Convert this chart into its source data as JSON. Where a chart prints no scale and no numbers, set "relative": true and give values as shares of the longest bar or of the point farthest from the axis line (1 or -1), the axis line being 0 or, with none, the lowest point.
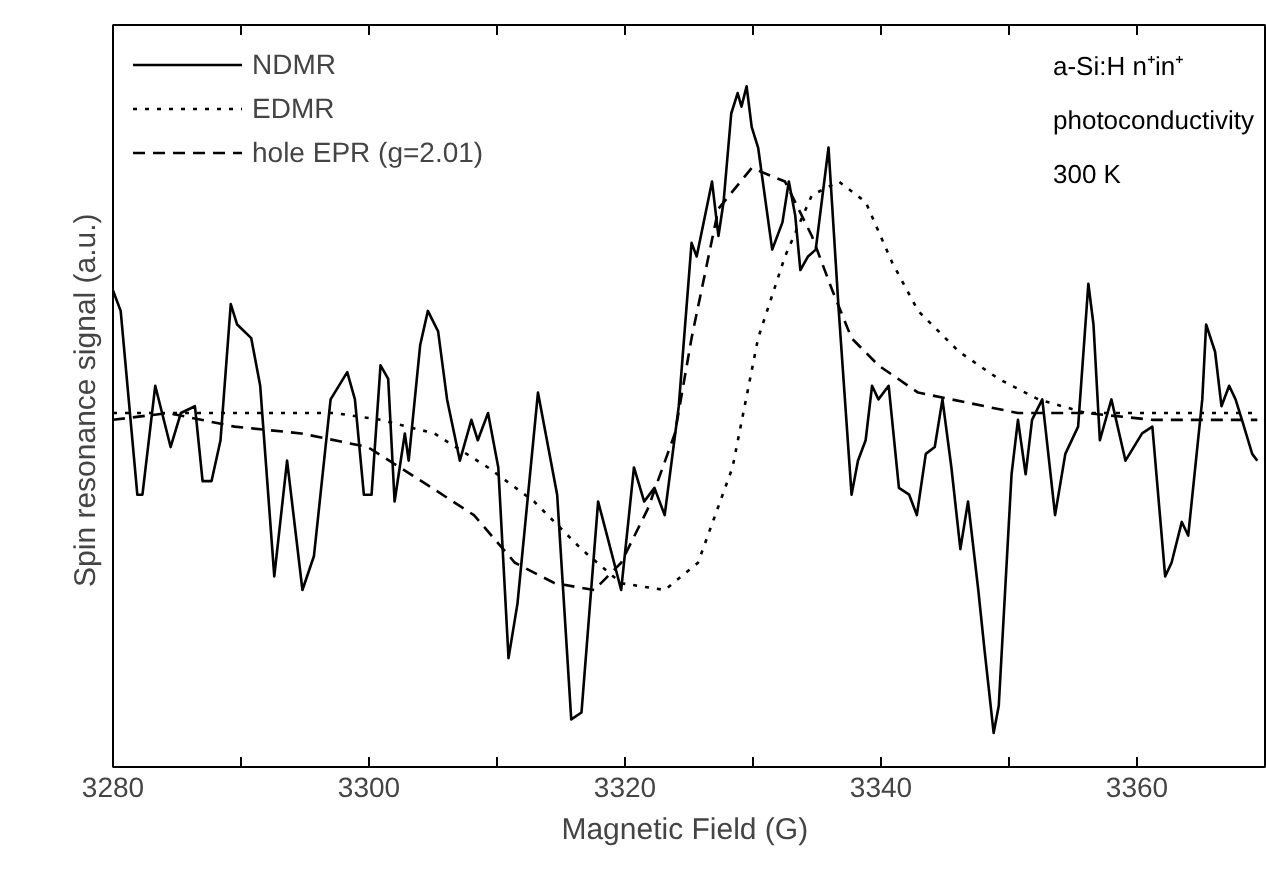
{
  "chart_data": {
    "type": "line",
    "relative": true,
    "xlabel": "Magnetic Field  (G)",
    "ylabel": "Spin resonance signal  (a.u.)",
    "xlim": [
      3280,
      3370
    ],
    "xticks": [
      3280,
      {
        "value": 3290,
        "label": null
      },
      3300,
      {
        "value": 3310,
        "label": null
      },
      3320,
      {
        "value": 3330,
        "label": null
      },
      3340,
      {
        "value": 3350,
        "label": null
      },
      3360
    ],
    "legend": "top left",
    "grid": false,
    "marker": "none",
    "annotations": [
      "a-Si:H n⁺in⁺",
      "photoconductivity",
      "300 K"
    ],
    "series": [
      {
        "name": "NDMR",
        "color": "#000000",
        "line_style": "solid",
        "x": [
          3280.0,
          3280.6,
          3281.9,
          3282.3,
          3283.3,
          3284.5,
          3285.3,
          3286.4,
          3287.0,
          3287.7,
          3288.4,
          3289.2,
          3289.7,
          3290.8,
          3291.5,
          3292.6,
          3293.6,
          3294.8,
          3295.7,
          3297.0,
          3298.3,
          3298.9,
          3299.6,
          3300.2,
          3300.9,
          3301.5,
          3302.0,
          3302.8,
          3303.1,
          3304.0,
          3304.6,
          3305.4,
          3306.1,
          3307.1,
          3308.0,
          3308.5,
          3309.3,
          3310.1,
          3310.9,
          3311.6,
          3313.2,
          3314.7,
          3315.8,
          3316.6,
          3317.9,
          3318.6,
          3319.7,
          3320.7,
          3321.5,
          3322.3,
          3323.1,
          3324.2,
          3325.2,
          3325.6,
          3326.8,
          3327.3,
          3327.7,
          3328.3,
          3328.8,
          3329.1,
          3329.5,
          3329.9,
          3330.4,
          3331.5,
          3332.3,
          3332.8,
          3333.3,
          3333.7,
          3334.3,
          3334.9,
          3335.9,
          3336.7,
          3337.7,
          3338.2,
          3338.8,
          3339.3,
          3339.8,
          3340.6,
          3341.4,
          3342.2,
          3342.8,
          3343.5,
          3344.2,
          3344.8,
          3345.5,
          3346.2,
          3346.8,
          3347.6,
          3348.1,
          3348.8,
          3349.2,
          3350.2,
          3350.7,
          3351.3,
          3351.8,
          3352.6,
          3353.6,
          3354.4,
          3355.4,
          3356.2,
          3356.6,
          3357.1,
          3358.0,
          3359.1,
          3360.4,
          3361.2,
          3362.2,
          3362.7,
          3363.5,
          3364.0,
          3365.1,
          3365.4,
          3366.1,
          3366.6,
          3367.2,
          3367.7,
          3368.2,
          3369.0,
          3369.4
        ],
        "values": [
          0.7,
          0.67,
          0.4,
          0.4,
          0.56,
          0.47,
          0.52,
          0.53,
          0.42,
          0.42,
          0.48,
          0.68,
          0.65,
          0.63,
          0.56,
          0.28,
          0.45,
          0.26,
          0.31,
          0.54,
          0.58,
          0.54,
          0.4,
          0.4,
          0.59,
          0.57,
          0.39,
          0.49,
          0.45,
          0.62,
          0.67,
          0.64,
          0.54,
          0.45,
          0.51,
          0.48,
          0.52,
          0.44,
          0.16,
          0.24,
          0.55,
          0.4,
          0.07,
          0.08,
          0.39,
          0.34,
          0.26,
          0.44,
          0.39,
          0.41,
          0.37,
          0.53,
          0.77,
          0.75,
          0.86,
          0.78,
          0.83,
          0.96,
          0.99,
          0.97,
          1.0,
          0.94,
          0.91,
          0.76,
          0.8,
          0.86,
          0.81,
          0.73,
          0.75,
          0.76,
          0.91,
          0.67,
          0.4,
          0.45,
          0.48,
          0.56,
          0.54,
          0.56,
          0.41,
          0.4,
          0.37,
          0.46,
          0.47,
          0.54,
          0.44,
          0.32,
          0.39,
          0.26,
          0.17,
          0.05,
          0.09,
          0.43,
          0.51,
          0.43,
          0.51,
          0.54,
          0.37,
          0.46,
          0.5,
          0.71,
          0.65,
          0.48,
          0.54,
          0.45,
          0.49,
          0.5,
          0.28,
          0.3,
          0.36,
          0.34,
          0.54,
          0.65,
          0.61,
          0.53,
          0.56,
          0.54,
          0.51,
          0.46,
          0.45
        ]
      },
      {
        "name": "EDMR",
        "color": "#000000",
        "line_style": "dotted",
        "x": [
          3280.0,
          3289.5,
          3297.3,
          3300.9,
          3305.1,
          3309.3,
          3312.9,
          3316.6,
          3319.7,
          3323.1,
          3325.7,
          3328.4,
          3330.4,
          3332.5,
          3334.6,
          3336.7,
          3338.8,
          3340.9,
          3342.9,
          3346.1,
          3349.2,
          3352.3,
          3356.0,
          3361.2,
          3369.4
        ],
        "values": [
          0.52,
          0.52,
          0.52,
          0.51,
          0.49,
          0.44,
          0.39,
          0.32,
          0.27,
          0.26,
          0.3,
          0.44,
          0.63,
          0.75,
          0.84,
          0.86,
          0.83,
          0.74,
          0.67,
          0.61,
          0.57,
          0.54,
          0.52,
          0.52,
          0.52
        ]
      },
      {
        "name": "hole EPR (g=2.01)",
        "color": "#000000",
        "line_style": "dashed",
        "x": [
          3280.0,
          3284.3,
          3289.5,
          3294.7,
          3299.9,
          3304.1,
          3308.2,
          3311.4,
          3314.5,
          3317.6,
          3319.7,
          3321.8,
          3323.9,
          3325.2,
          3327.3,
          3329.9,
          3332.5,
          3334.6,
          3336.2,
          3337.7,
          3339.8,
          3342.9,
          3345.5,
          3350.7,
          3356.0,
          3361.2,
          3369.4
        ],
        "values": [
          0.51,
          0.52,
          0.5,
          0.49,
          0.47,
          0.42,
          0.37,
          0.3,
          0.27,
          0.26,
          0.3,
          0.38,
          0.49,
          0.63,
          0.82,
          0.88,
          0.86,
          0.78,
          0.7,
          0.63,
          0.59,
          0.55,
          0.54,
          0.52,
          0.52,
          0.51,
          0.51
        ]
      }
    ]
  }
}
